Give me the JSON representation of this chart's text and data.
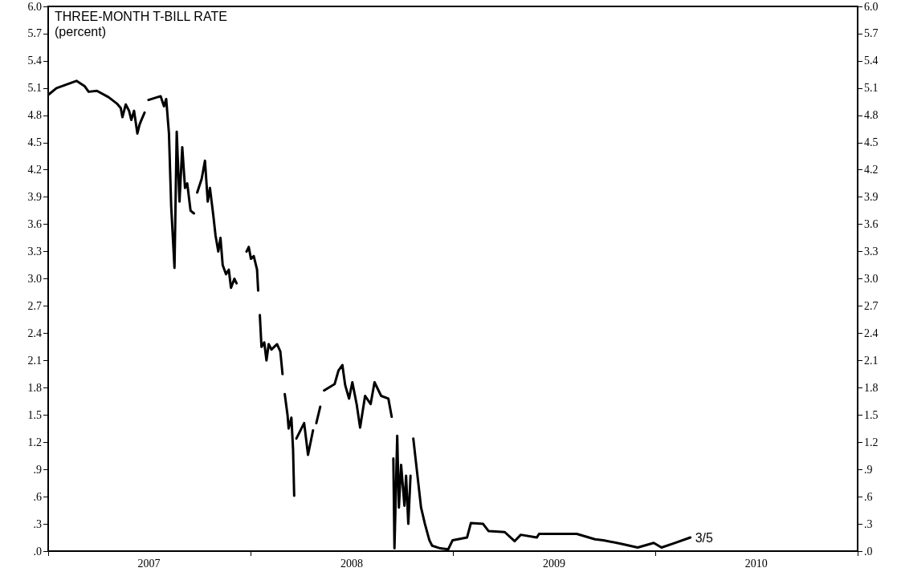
{
  "chart_data": {
    "type": "line",
    "title": "THREE-MONTH T-BILL RATE",
    "subtitle": "(percent)",
    "x": [
      "2007-01-02",
      "2007-01-16",
      "2007-01-30",
      "2007-02-21",
      "2007-03-08",
      "2007-03-15",
      "2007-03-30",
      "2007-04-20",
      "2007-05-05",
      "2007-05-12",
      "2007-05-15",
      "2007-05-21",
      "2007-05-27",
      "2007-05-31",
      "2007-06-05",
      "2007-06-11",
      "2007-06-15",
      "2007-06-19",
      "2007-06-24",
      "2007-06-28",
      "2007-07-01",
      "2007-07-17",
      "2007-07-23",
      "2007-07-29",
      "2007-08-02",
      "2007-08-07",
      "2007-08-11",
      "2007-08-17",
      "2007-08-21",
      "2007-08-26",
      "2007-08-31",
      "2007-09-05",
      "2007-09-09",
      "2007-09-15",
      "2007-09-21",
      "2007-09-24",
      "2007-09-27",
      "2007-10-05",
      "2007-10-11",
      "2007-10-16",
      "2007-10-20",
      "2007-10-26",
      "2007-10-30",
      "2007-11-04",
      "2007-11-08",
      "2007-11-12",
      "2007-11-18",
      "2007-11-23",
      "2007-11-27",
      "2007-12-03",
      "2007-12-07",
      "2007-12-12",
      "2007-12-25",
      "2007-12-29",
      "2008-01-02",
      "2008-01-07",
      "2008-01-13",
      "2008-01-15",
      "2008-01-17",
      "2008-01-18",
      "2008-01-21",
      "2008-01-26",
      "2008-01-30",
      "2008-02-03",
      "2008-02-08",
      "2008-02-13",
      "2008-02-18",
      "2008-02-24",
      "2008-02-28",
      "2008-03-02",
      "2008-03-03",
      "2008-03-08",
      "2008-03-10",
      "2008-03-15",
      "2008-03-18",
      "2008-03-20",
      "2008-03-22",
      "2008-03-24",
      "2008-04-07",
      "2008-04-14",
      "2008-04-23",
      "2008-04-25",
      "2008-04-29",
      "2008-05-06",
      "2008-05-09",
      "2008-05-13",
      "2008-06-01",
      "2008-06-08",
      "2008-06-15",
      "2008-06-20",
      "2008-06-27",
      "2008-07-03",
      "2008-07-11",
      "2008-07-17",
      "2008-07-26",
      "2008-08-05",
      "2008-08-12",
      "2008-08-24",
      "2008-09-06",
      "2008-09-12",
      "2008-09-14",
      "2008-09-15",
      "2008-09-17",
      "2008-09-22",
      "2008-09-25",
      "2008-09-29",
      "2008-10-05",
      "2008-10-08",
      "2008-10-12",
      "2008-10-16",
      "2008-10-18",
      "2008-10-21",
      "2008-10-28",
      "2008-11-04",
      "2008-11-11",
      "2008-11-19",
      "2008-11-24",
      "2008-12-09",
      "2008-12-23",
      "2008-12-31",
      "2009-01-26",
      "2009-02-02",
      "2009-02-24",
      "2009-03-06",
      "2009-04-04",
      "2009-04-22",
      "2009-05-03",
      "2009-06-01",
      "2009-06-05",
      "2009-08-12",
      "2009-09-14",
      "2009-09-29",
      "2009-11-01",
      "2009-11-30",
      "2009-12-29",
      "2010-01-12",
      "2010-02-05",
      "2010-03-05"
    ],
    "series": [
      {
        "color": "#000000",
        "values": [
          5.03,
          5.1,
          5.13,
          5.18,
          5.12,
          5.06,
          5.07,
          5.0,
          4.93,
          4.88,
          4.78,
          4.92,
          4.85,
          4.75,
          4.85,
          4.6,
          4.7,
          4.76,
          4.83,
          null,
          4.97,
          5.0,
          5.01,
          4.9,
          4.98,
          4.6,
          3.8,
          3.12,
          4.62,
          3.85,
          4.45,
          4.0,
          4.05,
          3.75,
          3.72,
          null,
          3.95,
          4.1,
          4.3,
          3.85,
          4.0,
          3.7,
          3.48,
          3.3,
          3.45,
          3.15,
          3.05,
          3.1,
          2.9,
          3.0,
          2.95,
          null,
          3.3,
          3.35,
          3.22,
          3.25,
          3.1,
          2.87,
          null,
          2.6,
          2.25,
          2.3,
          2.1,
          2.28,
          2.22,
          2.25,
          2.28,
          2.2,
          1.95,
          null,
          1.73,
          1.5,
          1.35,
          1.47,
          1.12,
          0.61,
          null,
          1.24,
          1.41,
          1.06,
          1.33,
          null,
          1.41,
          1.59,
          null,
          1.77,
          1.84,
          1.99,
          2.05,
          1.83,
          1.68,
          1.86,
          1.61,
          1.36,
          1.71,
          1.62,
          1.86,
          1.71,
          1.68,
          1.48,
          null,
          1.02,
          0.03,
          1.27,
          0.48,
          0.95,
          0.5,
          0.83,
          0.3,
          0.83,
          null,
          1.24,
          0.86,
          0.48,
          0.3,
          0.12,
          0.06,
          0.03,
          0.02,
          0.12,
          0.15,
          0.31,
          0.3,
          0.22,
          0.21,
          0.11,
          0.18,
          0.15,
          0.19,
          0.19,
          0.13,
          0.12,
          0.08,
          0.04,
          0.09,
          0.04,
          0.09,
          0.15
        ]
      }
    ],
    "annotations": [
      {
        "text": "3/5",
        "x": "2010-03-05",
        "y": 0.15
      }
    ],
    "xlim": [
      "2007-01-01",
      "2011-01-01"
    ],
    "xticks": [
      {
        "value": "2007-01-01",
        "label": null
      },
      {
        "value": "2008-01-01",
        "label": null
      },
      {
        "value": "2009-01-01",
        "label": null
      },
      {
        "value": "2010-01-01",
        "label": null
      },
      {
        "value": "2011-01-01",
        "label": null
      },
      {
        "value": "2007-07-02",
        "label": "2007"
      },
      {
        "value": "2008-07-02",
        "label": "2008"
      },
      {
        "value": "2009-07-02",
        "label": "2009"
      },
      {
        "value": "2010-07-02",
        "label": "2010"
      }
    ],
    "ylim": [
      0,
      6
    ],
    "yticks": [
      {
        "value": 0,
        "label": ".0"
      },
      {
        "value": 0.3,
        "label": ".3"
      },
      {
        "value": 0.6,
        "label": ".6"
      },
      {
        "value": 0.9,
        "label": ".9"
      },
      1.2,
      1.5,
      1.8,
      2.1,
      2.4,
      2.7,
      {
        "value": 3,
        "label": "3.0"
      },
      3.3,
      3.6,
      3.9,
      4.2,
      4.5,
      4.8,
      5.1,
      5.4,
      5.7,
      {
        "value": 6,
        "label": "6.0"
      }
    ],
    "y2lim": [
      0,
      6
    ],
    "y2ticks": [
      {
        "value": 0,
        "label": ".0"
      },
      {
        "value": 0.3,
        "label": ".3"
      },
      {
        "value": 0.6,
        "label": ".6"
      },
      {
        "value": 0.9,
        "label": ".9"
      },
      1.2,
      1.5,
      1.8,
      2.1,
      2.4,
      2.7,
      {
        "value": 3,
        "label": "3.0"
      },
      3.3,
      3.6,
      3.9,
      4.2,
      4.5,
      4.8,
      5.1,
      5.4,
      5.7,
      {
        "value": 6,
        "label": "6.0"
      }
    ],
    "grid": false,
    "marker": "none",
    "line_style": "solid"
  }
}
